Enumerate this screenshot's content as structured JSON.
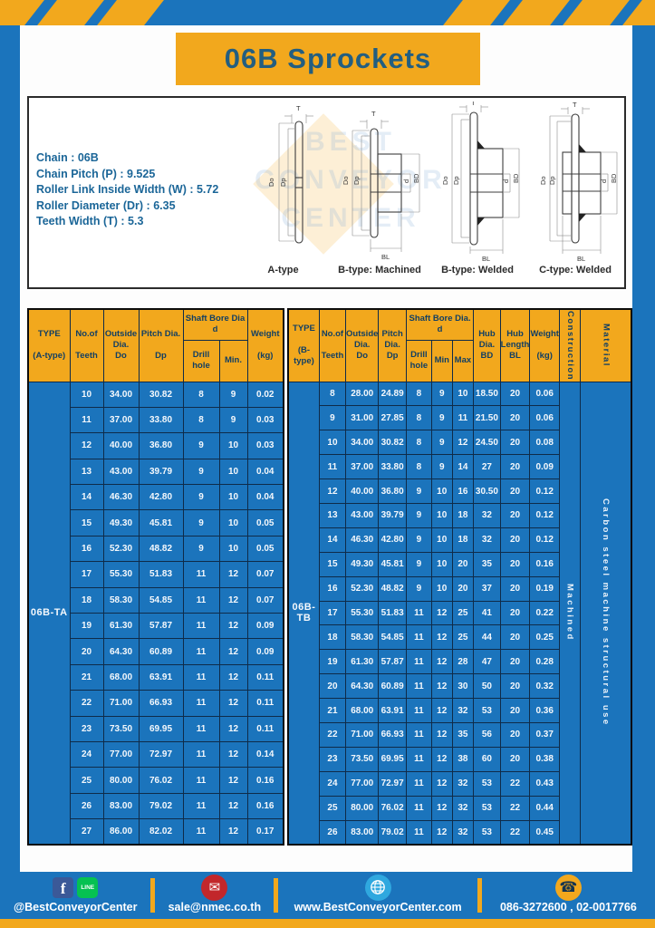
{
  "title": "06B Sprockets",
  "specs": {
    "chain": "Chain : 06B",
    "pitch": "Chain Pitch (P) : 9.525",
    "roller_width": "Roller Link Inside Width (W) : 5.72",
    "roller_dia": "Roller Diameter (Dr) : 6.35",
    "teeth_width": "Teeth Width (T) : 5.3"
  },
  "watermark": "BEST\nCONVEYOR\nCENTER",
  "diagram_labels": {
    "a": "A-type",
    "b_machined": "B-type: Machined",
    "b_welded": "B-type: Welded",
    "c_welded": "C-type: Welded"
  },
  "diagram_dims": {
    "t": "T",
    "do_": "Do",
    "dp": "Dp",
    "d": "d",
    "bd": "BD",
    "bl": "BL"
  },
  "table_a": {
    "type_label": "06B-TA",
    "headers": {
      "type": "TYPE\n\n(A-type)",
      "teeth": "No.of\n\nTeeth",
      "outside": "Outside\nDia.\nDo",
      "pitch": "Pitch Dia.\n\nDp",
      "shaft": "Shaft Bore Dia d",
      "drill": "Drill hole",
      "min": "Min.",
      "weight": "Weight\n\n(kg)"
    },
    "rows": [
      [
        "10",
        "34.00",
        "30.82",
        "8",
        "9",
        "0.02"
      ],
      [
        "11",
        "37.00",
        "33.80",
        "8",
        "9",
        "0.03"
      ],
      [
        "12",
        "40.00",
        "36.80",
        "9",
        "10",
        "0.03"
      ],
      [
        "13",
        "43.00",
        "39.79",
        "9",
        "10",
        "0.04"
      ],
      [
        "14",
        "46.30",
        "42.80",
        "9",
        "10",
        "0.04"
      ],
      [
        "15",
        "49.30",
        "45.81",
        "9",
        "10",
        "0.05"
      ],
      [
        "16",
        "52.30",
        "48.82",
        "9",
        "10",
        "0.05"
      ],
      [
        "17",
        "55.30",
        "51.83",
        "11",
        "12",
        "0.07"
      ],
      [
        "18",
        "58.30",
        "54.85",
        "11",
        "12",
        "0.07"
      ],
      [
        "19",
        "61.30",
        "57.87",
        "11",
        "12",
        "0.09"
      ],
      [
        "20",
        "64.30",
        "60.89",
        "11",
        "12",
        "0.09"
      ],
      [
        "21",
        "68.00",
        "63.91",
        "11",
        "12",
        "0.11"
      ],
      [
        "22",
        "71.00",
        "66.93",
        "11",
        "12",
        "0.11"
      ],
      [
        "23",
        "73.50",
        "69.95",
        "11",
        "12",
        "0.11"
      ],
      [
        "24",
        "77.00",
        "72.97",
        "11",
        "12",
        "0.14"
      ],
      [
        "25",
        "80.00",
        "76.02",
        "11",
        "12",
        "0.16"
      ],
      [
        "26",
        "83.00",
        "79.02",
        "11",
        "12",
        "0.16"
      ],
      [
        "27",
        "86.00",
        "82.02",
        "11",
        "12",
        "0.17"
      ]
    ]
  },
  "table_b": {
    "type_label": "06B-TB",
    "headers": {
      "type": "TYPE\n\n(B-type)",
      "teeth": "No.of\n\nTeeth",
      "outside": "Outside\nDia.\nDo",
      "pitch": "Pitch\nDia.\nDp",
      "shaft": "Shaft Bore Dia. d",
      "drill": "Drill hole",
      "min": "Min",
      "max": "Max",
      "hub_dia": "Hub\nDia.\nBD",
      "hub_len": "Hub\nLength\nBL",
      "weight": "Weight\n\n(kg)",
      "construction": "Construction",
      "material": "Material"
    },
    "construction": "Machined",
    "material": "Carbon steel machine structural use",
    "rows": [
      [
        "8",
        "28.00",
        "24.89",
        "8",
        "9",
        "10",
        "18.50",
        "20",
        "0.06"
      ],
      [
        "9",
        "31.00",
        "27.85",
        "8",
        "9",
        "11",
        "21.50",
        "20",
        "0.06"
      ],
      [
        "10",
        "34.00",
        "30.82",
        "8",
        "9",
        "12",
        "24.50",
        "20",
        "0.08"
      ],
      [
        "11",
        "37.00",
        "33.80",
        "8",
        "9",
        "14",
        "27",
        "20",
        "0.09"
      ],
      [
        "12",
        "40.00",
        "36.80",
        "9",
        "10",
        "16",
        "30.50",
        "20",
        "0.12"
      ],
      [
        "13",
        "43.00",
        "39.79",
        "9",
        "10",
        "18",
        "32",
        "20",
        "0.12"
      ],
      [
        "14",
        "46.30",
        "42.80",
        "9",
        "10",
        "18",
        "32",
        "20",
        "0.12"
      ],
      [
        "15",
        "49.30",
        "45.81",
        "9",
        "10",
        "20",
        "35",
        "20",
        "0.16"
      ],
      [
        "16",
        "52.30",
        "48.82",
        "9",
        "10",
        "20",
        "37",
        "20",
        "0.19"
      ],
      [
        "17",
        "55.30",
        "51.83",
        "11",
        "12",
        "25",
        "41",
        "20",
        "0.22"
      ],
      [
        "18",
        "58.30",
        "54.85",
        "11",
        "12",
        "25",
        "44",
        "20",
        "0.25"
      ],
      [
        "19",
        "61.30",
        "57.87",
        "11",
        "12",
        "28",
        "47",
        "20",
        "0.28"
      ],
      [
        "20",
        "64.30",
        "60.89",
        "11",
        "12",
        "30",
        "50",
        "20",
        "0.32"
      ],
      [
        "21",
        "68.00",
        "63.91",
        "11",
        "12",
        "32",
        "53",
        "20",
        "0.36"
      ],
      [
        "22",
        "71.00",
        "66.93",
        "11",
        "12",
        "35",
        "56",
        "20",
        "0.37"
      ],
      [
        "23",
        "73.50",
        "69.95",
        "11",
        "12",
        "38",
        "60",
        "20",
        "0.38"
      ],
      [
        "24",
        "77.00",
        "72.97",
        "11",
        "12",
        "32",
        "53",
        "22",
        "0.43"
      ],
      [
        "25",
        "80.00",
        "76.02",
        "11",
        "12",
        "32",
        "53",
        "22",
        "0.44"
      ],
      [
        "26",
        "83.00",
        "79.02",
        "11",
        "12",
        "32",
        "53",
        "22",
        "0.45"
      ]
    ]
  },
  "footer": {
    "social_label": "@BestConveyorCenter",
    "line_text": "LINE",
    "fb_letter": "f",
    "email": "sale@nmec.co.th",
    "website": "www.BestConveyorCenter.com",
    "phone": "086-3272600 , 02-0017766"
  },
  "colors": {
    "blue": "#1B74BC",
    "yellow": "#F2A81D",
    "navy_border": "#0F2B49",
    "title_text": "#235E80"
  }
}
